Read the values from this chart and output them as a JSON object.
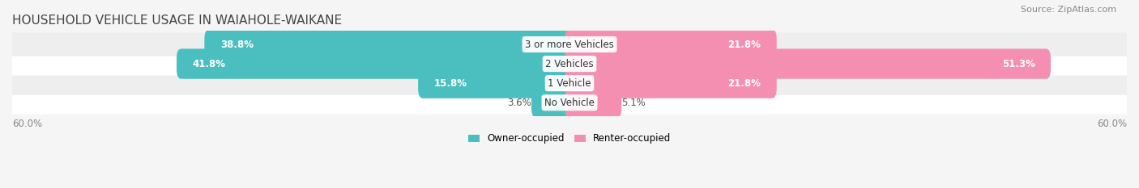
{
  "title": "HOUSEHOLD VEHICLE USAGE IN WAIAHOLE-WAIKANE",
  "source": "Source: ZipAtlas.com",
  "categories": [
    "No Vehicle",
    "1 Vehicle",
    "2 Vehicles",
    "3 or more Vehicles"
  ],
  "owner_values": [
    3.6,
    15.8,
    41.8,
    38.8
  ],
  "renter_values": [
    5.1,
    21.8,
    51.3,
    21.8
  ],
  "owner_color": "#4BBFBF",
  "renter_color": "#F48FB1",
  "axis_max": 60.0,
  "axis_label": "60.0%",
  "bg_color": "#F5F5F5",
  "bar_bg_color": "#E8E8E8",
  "title_fontsize": 11,
  "label_fontsize": 8.5,
  "category_fontsize": 8.5,
  "legend_fontsize": 8.5,
  "source_fontsize": 8
}
